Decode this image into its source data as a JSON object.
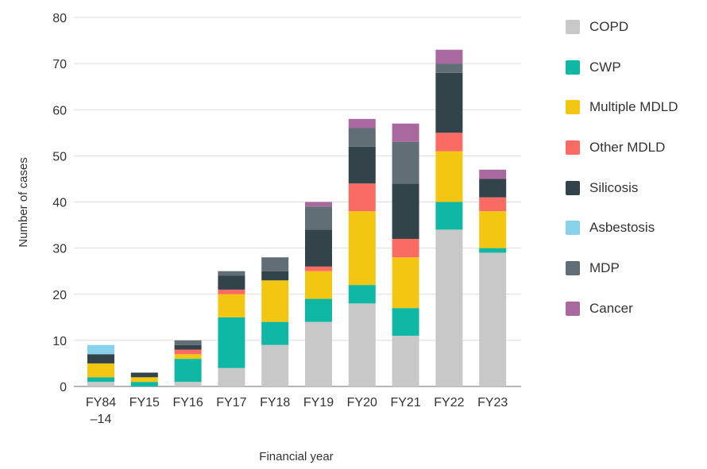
{
  "chart_data": {
    "type": "bar",
    "stacked": true,
    "title": "",
    "xlabel": "Financial year",
    "ylabel": "Number of cases",
    "ylim": [
      0,
      80
    ],
    "yticks": [
      0,
      10,
      20,
      30,
      40,
      50,
      60,
      70,
      80
    ],
    "grid": true,
    "legend_position": "right",
    "categories": [
      [
        "FY84",
        "–14"
      ],
      [
        "FY15"
      ],
      [
        "FY16"
      ],
      [
        "FY17"
      ],
      [
        "FY18"
      ],
      [
        "FY19"
      ],
      [
        "FY20"
      ],
      [
        "FY21"
      ],
      [
        "FY22"
      ],
      [
        "FY23"
      ]
    ],
    "series": [
      {
        "name": "COPD",
        "color": "#c8c8c8",
        "values": [
          1,
          0,
          1,
          4,
          9,
          14,
          18,
          11,
          34,
          29
        ]
      },
      {
        "name": "CWP",
        "color": "#0fb7a5",
        "values": [
          1,
          1,
          5,
          11,
          5,
          5,
          4,
          6,
          6,
          1
        ]
      },
      {
        "name": "Multiple MDLD",
        "color": "#f2c611",
        "values": [
          3,
          1,
          1,
          5,
          9,
          6,
          16,
          11,
          11,
          8
        ]
      },
      {
        "name": "Other MDLD",
        "color": "#fa6c63",
        "values": [
          0,
          0,
          1,
          1,
          0,
          1,
          6,
          4,
          4,
          3
        ]
      },
      {
        "name": "Silicosis",
        "color": "#33434a",
        "values": [
          2,
          1,
          1,
          3,
          2,
          8,
          8,
          12,
          13,
          4
        ]
      },
      {
        "name": "Asbestosis",
        "color": "#87d1ea",
        "values": [
          2,
          0,
          0,
          0,
          0,
          0,
          0,
          0,
          0,
          0
        ]
      },
      {
        "name": "MDP",
        "color": "#626e76",
        "values": [
          0,
          0,
          1,
          1,
          3,
          5,
          4,
          9,
          2,
          0
        ]
      },
      {
        "name": "Cancer",
        "color": "#a86a9e",
        "values": [
          0,
          0,
          0,
          0,
          0,
          1,
          2,
          4,
          3,
          2
        ]
      }
    ]
  }
}
